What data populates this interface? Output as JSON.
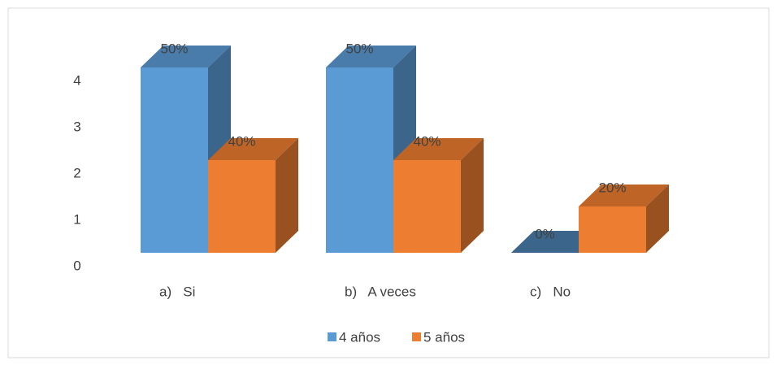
{
  "chart_data": {
    "type": "bar3d",
    "categories": [
      "a)   Si",
      "b)   A veces",
      "c)   No"
    ],
    "series": [
      {
        "name": "4 años",
        "color": "#5b9bd5",
        "values": [
          4,
          4,
          0
        ],
        "value_labels": [
          "50%",
          "50%",
          "0%"
        ]
      },
      {
        "name": "5 años",
        "color": "#ed7d31",
        "values": [
          2,
          2,
          1
        ],
        "value_labels": [
          "40%",
          "40%",
          "20%"
        ]
      }
    ],
    "ylim": [
      0,
      4
    ],
    "yticks": [
      0,
      1,
      2,
      3,
      4
    ],
    "grid": false,
    "legend": "bottom"
  }
}
